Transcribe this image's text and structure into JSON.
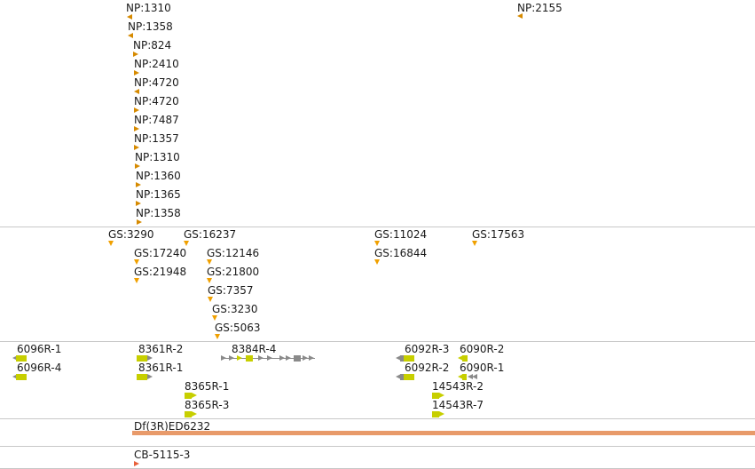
{
  "colors": {
    "np_marker": "#d68a00",
    "gs_marker": "#f0a000",
    "gene_body": "#c7cf00",
    "gene_grey": "#8a8a8a",
    "deletion": "#e89a6a",
    "cb_marker": "#e8603a"
  },
  "np_track": [
    {
      "label": "NP:1310"
    },
    {
      "label": "NP:1358"
    },
    {
      "label": "NP:824"
    },
    {
      "label": "NP:2410"
    },
    {
      "label": "NP:4720"
    },
    {
      "label": "NP:4720"
    },
    {
      "label": "NP:7487"
    },
    {
      "label": "NP:1357"
    },
    {
      "label": "NP:1310"
    },
    {
      "label": "NP:1360"
    },
    {
      "label": "NP:1365"
    },
    {
      "label": "NP:1358"
    },
    {
      "label": "NP:2155"
    }
  ],
  "gs_track": [
    {
      "label": "GS:3290"
    },
    {
      "label": "GS:16237"
    },
    {
      "label": "GS:11024"
    },
    {
      "label": "GS:17563"
    },
    {
      "label": "GS:17240"
    },
    {
      "label": "GS:12146"
    },
    {
      "label": "GS:16844"
    },
    {
      "label": "GS:21948"
    },
    {
      "label": "GS:21800"
    },
    {
      "label": "GS:7357"
    },
    {
      "label": "GS:3230"
    },
    {
      "label": "GS:5063"
    }
  ],
  "gene_track": [
    {
      "label": "6096R-1"
    },
    {
      "label": "6096R-4"
    },
    {
      "label": "8361R-2"
    },
    {
      "label": "8361R-1"
    },
    {
      "label": "8384R-4"
    },
    {
      "label": "8365R-1"
    },
    {
      "label": "8365R-3"
    },
    {
      "label": "6092R-3"
    },
    {
      "label": "6092R-2"
    },
    {
      "label": "6090R-2"
    },
    {
      "label": "6090R-1"
    },
    {
      "label": "14543R-2"
    },
    {
      "label": "14543R-7"
    }
  ],
  "deletion_track": {
    "label": "Df(3R)ED6232"
  },
  "cb_track": {
    "label": "CB-5115-3"
  }
}
